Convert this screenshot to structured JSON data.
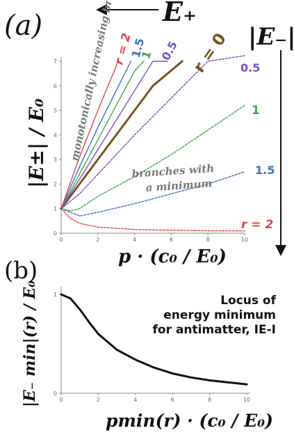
{
  "colors": {
    "r2": "#e0474c",
    "r15": "#3f6fc0",
    "r1": "#3caa4a",
    "r05": "#7b52c4",
    "r0": "#7a5220",
    "axis": "#555555",
    "locus": "#111111",
    "annotation": "#777777",
    "arrow": "#111111"
  },
  "panel_a": {
    "label": "(a)",
    "e_plus_label": "E₊",
    "e_minus_label": "|E₋|",
    "ylabel": "|E±| / E₀",
    "xlabel": "p · (c₀ / E₀)",
    "annotation_increasing": "monotonically increasing branches",
    "annotation_minimum_line1": "branches with",
    "annotation_minimum_line2": "a minimum",
    "curve_labels_top": [
      "r = 2",
      "1.5",
      "1",
      "0.5",
      "r = 0"
    ],
    "curve_labels_right": [
      "0.5",
      "1",
      "1.5",
      "r = 2"
    ]
  },
  "panel_b": {
    "label": "(b)",
    "ylabel": "|E₋ min|(r) / E₀",
    "xlabel": "pmin(r) · (c₀ / E₀)",
    "annotation_line1": "Locus of",
    "annotation_line2": "energy minimum",
    "annotation_line3": "for antimatter, IE-I"
  },
  "chart_data": [
    {
      "type": "line",
      "xlim": [
        0,
        10
      ],
      "ylim": [
        0,
        7
      ],
      "x_ticks": [
        0,
        2,
        4,
        6,
        8,
        10
      ],
      "y_ticks": [
        0,
        1,
        2,
        3,
        4,
        5,
        6,
        7
      ],
      "series": [
        {
          "name": "r = 0",
          "branch": "both",
          "style": "solid",
          "color_key": "r0",
          "x": [
            0,
            1,
            2,
            3,
            4,
            5,
            6.6
          ],
          "y": [
            1.0,
            2.0,
            3.0,
            4.0,
            5.0,
            6.0,
            7.0
          ]
        },
        {
          "name": "0.5",
          "branch": "E+",
          "style": "solid",
          "color_key": "r05",
          "x": [
            0,
            1,
            2,
            3,
            4,
            5,
            5.8
          ],
          "y": [
            1.0,
            2.2,
            3.4,
            4.6,
            5.8,
            7.0,
            7.0
          ]
        },
        {
          "name": "1",
          "branch": "E+",
          "style": "solid",
          "color_key": "r1",
          "x": [
            0,
            1,
            2,
            3,
            4,
            4.5
          ],
          "y": [
            1.0,
            2.4,
            3.8,
            5.2,
            6.6,
            7.0
          ]
        },
        {
          "name": "1.5",
          "branch": "E+",
          "style": "solid",
          "color_key": "r15",
          "x": [
            0,
            1,
            2,
            3,
            3.8
          ],
          "y": [
            1.0,
            2.7,
            4.3,
            5.8,
            7.0
          ]
        },
        {
          "name": "r = 2",
          "branch": "E+",
          "style": "solid",
          "color_key": "r2",
          "x": [
            0,
            1,
            2,
            3,
            3.1
          ],
          "y": [
            1.0,
            3.1,
            5.0,
            6.8,
            7.0
          ]
        },
        {
          "name": "0.5",
          "branch": "E-",
          "style": "dashed",
          "color_key": "r05",
          "x": [
            0,
            1,
            2,
            4,
            6,
            8,
            10
          ],
          "y": [
            1.0,
            1.6,
            2.4,
            4.0,
            5.5,
            7.0,
            8.4
          ]
        },
        {
          "name": "1",
          "branch": "E-",
          "style": "dashed",
          "color_key": "r1",
          "x": [
            0,
            0.5,
            1,
            2,
            4,
            6,
            8,
            10
          ],
          "y": [
            1.0,
            0.9,
            1.0,
            1.5,
            2.3,
            3.2,
            4.2,
            5.2
          ]
        },
        {
          "name": "1.5",
          "branch": "E-",
          "style": "dashed",
          "color_key": "r15",
          "x": [
            0,
            1,
            2,
            4,
            6,
            8,
            10
          ],
          "y": [
            1.0,
            0.7,
            0.85,
            1.2,
            1.6,
            2.0,
            2.5
          ]
        },
        {
          "name": "r = 2",
          "branch": "E-",
          "style": "dashed",
          "color_key": "r2",
          "x": [
            0,
            0.5,
            1,
            2,
            4,
            6,
            8,
            10
          ],
          "y": [
            1.0,
            0.6,
            0.4,
            0.25,
            0.15,
            0.12,
            0.1,
            0.09
          ]
        }
      ]
    },
    {
      "type": "line",
      "xlim": [
        0,
        10
      ],
      "ylim": [
        0,
        1
      ],
      "x_ticks": [
        0,
        2,
        4,
        6,
        8,
        10
      ],
      "y_ticks": [
        0,
        1
      ],
      "series": [
        {
          "name": "Locus of energy minimum",
          "style": "solid",
          "color_key": "locus",
          "x": [
            0,
            0.5,
            1,
            1.5,
            2,
            3,
            4,
            5,
            6,
            7,
            8,
            9,
            10
          ],
          "y": [
            1.0,
            0.96,
            0.85,
            0.72,
            0.6,
            0.44,
            0.34,
            0.26,
            0.2,
            0.16,
            0.13,
            0.11,
            0.09
          ]
        }
      ]
    }
  ]
}
